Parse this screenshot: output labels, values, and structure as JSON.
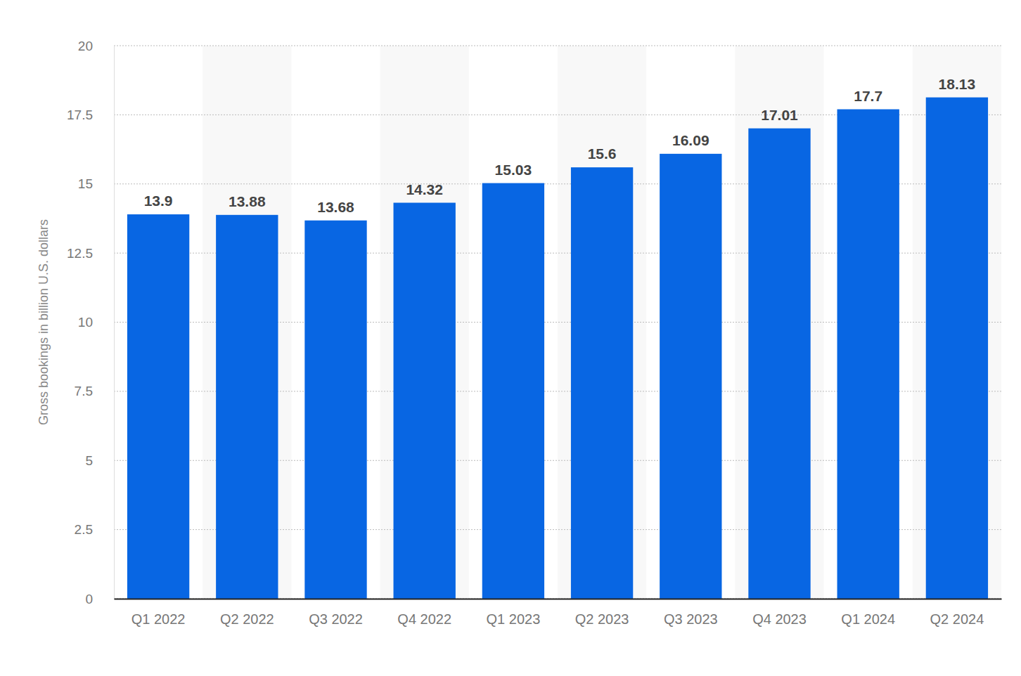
{
  "chart_data": {
    "type": "bar",
    "y_label": "Gross bookings in billion U.S. dollars",
    "categories": [
      "Q1 2022",
      "Q2 2022",
      "Q3 2022",
      "Q4 2022",
      "Q1 2023",
      "Q2 2023",
      "Q3 2023",
      "Q4 2023",
      "Q1 2024",
      "Q2 2024"
    ],
    "values": [
      13.9,
      13.88,
      13.68,
      14.32,
      15.03,
      15.6,
      16.09,
      17.01,
      17.7,
      18.13
    ],
    "color": "#0866e3",
    "ylim": [
      0,
      20
    ],
    "yticks": [
      0,
      2.5,
      5,
      7.5,
      10,
      12.5,
      15,
      17.5,
      20
    ],
    "grid": true,
    "data_labels": true
  }
}
